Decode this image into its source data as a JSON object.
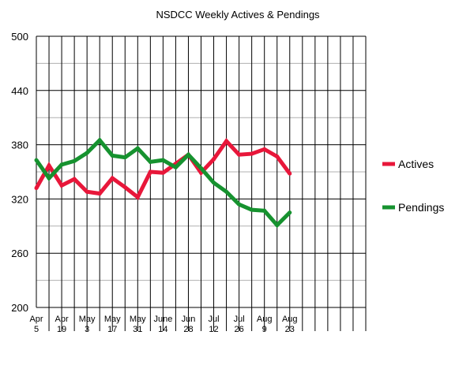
{
  "chart_data": {
    "type": "line",
    "title": "NSDCC Weekly Actives & Pendings",
    "xlabel": "",
    "ylabel": "",
    "ylim": [
      200,
      500
    ],
    "y_ticks": [
      200,
      260,
      320,
      380,
      440,
      500
    ],
    "grid": true,
    "legend_position": "right",
    "x_tick_labels": [
      [
        "Apr",
        "5"
      ],
      [
        "Apr",
        "19"
      ],
      [
        "May",
        "3"
      ],
      [
        "May",
        "17"
      ],
      [
        "May",
        "31"
      ],
      [
        "June",
        "14"
      ],
      [
        "Jun",
        "28"
      ],
      [
        "Jul",
        "12"
      ],
      [
        "Jul",
        "26"
      ],
      [
        "Aug",
        "9"
      ],
      [
        "Aug",
        "23"
      ]
    ],
    "x_slots": 26,
    "series": [
      {
        "name": "Actives",
        "color": "#e8173a",
        "values": [
          332,
          357,
          335,
          342,
          328,
          326,
          343,
          333,
          322,
          350,
          349,
          359,
          369,
          349,
          364,
          384,
          369,
          370,
          375,
          367,
          348
        ]
      },
      {
        "name": "Pendings",
        "color": "#16922f",
        "values": [
          363,
          343,
          358,
          362,
          371,
          385,
          368,
          366,
          376,
          361,
          363,
          355,
          369,
          354,
          338,
          328,
          314,
          308,
          307,
          291,
          305
        ]
      }
    ]
  }
}
